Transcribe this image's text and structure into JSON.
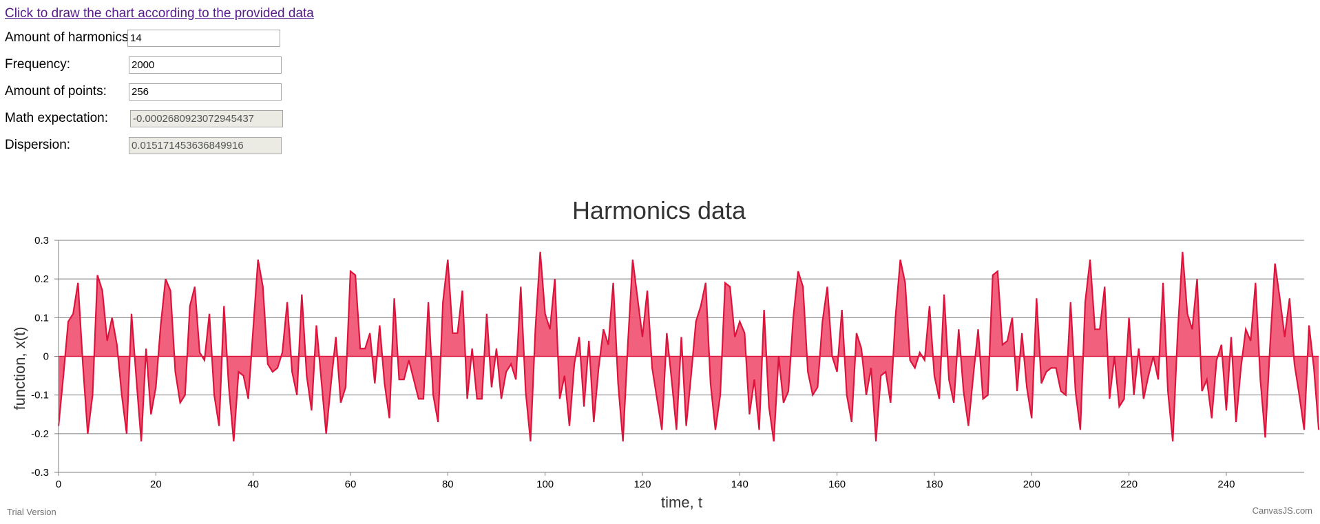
{
  "link": {
    "text": "Click to draw the chart according to the provided data"
  },
  "form": {
    "harmonics_label": "Amount of harmonics:",
    "harmonics_value": "14",
    "frequency_label": "Frequency:",
    "frequency_value": "2000",
    "points_label": "Amount of points:",
    "points_value": "256",
    "expectation_label": "Math expectation:",
    "expectation_value": "-0.0002680923072945437",
    "dispersion_label": "Dispersion:",
    "dispersion_value": "0.015171453636849916"
  },
  "footer": {
    "trial": "Trial Version",
    "credit": "CanvasJS.com"
  },
  "colors": {
    "line": "#dc143c",
    "fill": "#f05070",
    "grid": "#7f7f7f",
    "title": "#333333"
  },
  "chart_data": {
    "type": "area",
    "title": "Harmonics data",
    "xlabel": "time, t",
    "ylabel": "function, x(t)",
    "xlim": [
      0,
      256
    ],
    "ylim": [
      -0.3,
      0.3
    ],
    "x_ticks": [
      0,
      20,
      40,
      60,
      80,
      100,
      120,
      140,
      160,
      180,
      200,
      220,
      240
    ],
    "y_ticks": [
      "0.3",
      "0.2",
      "0.1",
      "0",
      "-0.1",
      "-0.2",
      "-0.3"
    ],
    "y_tick_values": [
      0.3,
      0.2,
      0.1,
      0,
      -0.1,
      -0.2,
      -0.3
    ],
    "grid": true,
    "x": "0..255 (one point per integer t)",
    "series": [
      {
        "values": [
          -0.18,
          -0.05,
          0.09,
          0.11,
          0.19,
          -0.02,
          -0.2,
          -0.1,
          0.21,
          0.17,
          0.04,
          0.1,
          0.03,
          -0.1,
          -0.2,
          0.11,
          -0.06,
          -0.22,
          0.02,
          -0.15,
          -0.08,
          0.08,
          0.2,
          0.17,
          -0.04,
          -0.12,
          -0.1,
          0.13,
          0.18,
          0.01,
          -0.01,
          0.11,
          -0.1,
          -0.18,
          0.13,
          -0.08,
          -0.22,
          -0.04,
          -0.05,
          -0.11,
          0.07,
          0.25,
          0.18,
          -0.02,
          -0.04,
          -0.03,
          0.01,
          0.14,
          -0.04,
          -0.1,
          0.16,
          -0.05,
          -0.14,
          0.08,
          -0.06,
          -0.2,
          -0.07,
          0.05,
          -0.12,
          -0.08,
          0.22,
          0.21,
          0.02,
          0.02,
          0.06,
          -0.07,
          0.08,
          -0.07,
          -0.16,
          0.15,
          -0.06,
          -0.06,
          -0.01,
          -0.06,
          -0.11,
          -0.11,
          0.14,
          -0.1,
          -0.17,
          0.14,
          0.25,
          0.06,
          0.06,
          0.17,
          -0.11,
          0.02,
          -0.11,
          -0.11,
          0.11,
          -0.08,
          0.02,
          -0.11,
          -0.04,
          -0.02,
          -0.06,
          0.18,
          -0.09,
          -0.22,
          0.07,
          0.27,
          0.11,
          0.07,
          0.2,
          -0.11,
          -0.05,
          -0.18,
          -0.02,
          0.05,
          -0.13,
          0.04,
          -0.17,
          -0.03,
          0.07,
          0.03,
          0.19,
          -0.07,
          -0.22,
          0.03,
          0.25,
          0.15,
          0.05,
          0.17,
          -0.03,
          -0.11,
          -0.19,
          0.06,
          -0.06,
          -0.19,
          0.05,
          -0.18,
          -0.05,
          0.09,
          0.13,
          0.19,
          -0.07,
          -0.19,
          -0.1,
          0.19,
          0.18,
          0.05,
          0.09,
          0.06,
          -0.15,
          -0.06,
          -0.19,
          0.12,
          -0.13,
          -0.22,
          0.0,
          -0.12,
          -0.09,
          0.1,
          0.22,
          0.18,
          -0.04,
          -0.1,
          -0.08,
          0.09,
          0.18,
          0.0,
          -0.04,
          0.12,
          -0.1,
          -0.17,
          0.06,
          0.02,
          -0.1,
          -0.03,
          -0.22,
          -0.05,
          -0.04,
          -0.12,
          0.1,
          0.25,
          0.19,
          -0.01,
          -0.03,
          0.01,
          -0.01,
          0.13,
          -0.05,
          -0.11,
          0.16,
          -0.06,
          -0.12,
          0.07,
          -0.09,
          -0.18,
          -0.05,
          0.07,
          -0.11,
          -0.1,
          0.21,
          0.22,
          0.03,
          0.04,
          0.1,
          -0.09,
          0.06,
          -0.08,
          -0.16,
          0.15,
          -0.07,
          -0.04,
          -0.03,
          -0.03,
          -0.09,
          -0.1,
          0.14,
          -0.09,
          -0.19,
          0.14,
          0.25,
          0.07,
          0.07,
          0.18,
          -0.11,
          0.0,
          -0.13,
          -0.11,
          0.1,
          -0.1,
          0.02,
          -0.11,
          -0.05,
          0.0,
          -0.06,
          0.19,
          -0.09,
          -0.22,
          0.06,
          0.27,
          0.11,
          0.07,
          0.2,
          -0.09,
          -0.06,
          -0.16,
          -0.01,
          0.03,
          -0.14,
          0.05,
          -0.17,
          -0.03,
          0.07,
          0.04,
          0.19,
          -0.06,
          -0.21,
          0.03,
          0.24,
          0.15,
          0.05,
          0.15,
          -0.02,
          -0.1,
          -0.19,
          0.08,
          -0.03,
          -0.19
        ]
      }
    ]
  }
}
